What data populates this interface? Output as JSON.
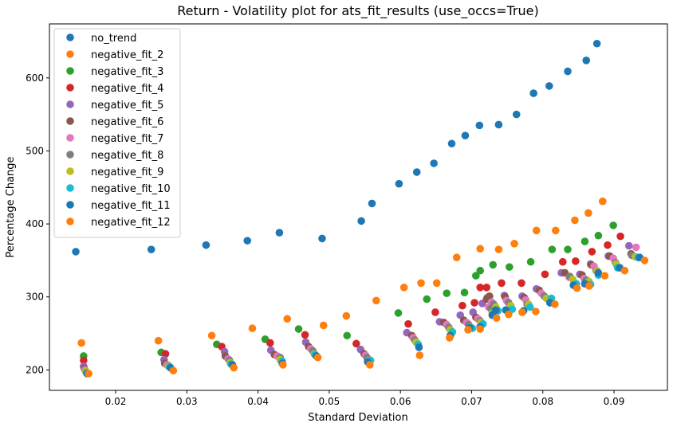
{
  "chart_data": {
    "type": "scatter",
    "title": "Return - Volatility plot for ats_fit_results (use_occs=True)",
    "xlabel": "Standard Deviation",
    "ylabel": "Percentage Change",
    "xlim": [
      0.0107,
      0.0975
    ],
    "ylim": [
      172,
      674
    ],
    "xticks": [
      0.02,
      0.03,
      0.04,
      0.05,
      0.06,
      0.07,
      0.08,
      0.09
    ],
    "xtick_labels": [
      "0.02",
      "0.03",
      "0.04",
      "0.05",
      "0.06",
      "0.07",
      "0.08",
      "0.09"
    ],
    "yticks": [
      200,
      300,
      400,
      500,
      600
    ],
    "ytick_labels": [
      "200",
      "300",
      "400",
      "500",
      "600"
    ],
    "grid": false,
    "legend_position": "top-left",
    "series": [
      {
        "name": "no_trend",
        "color": "#1f77b4",
        "points": [
          [
            0.0144,
            362
          ],
          [
            0.025,
            365
          ],
          [
            0.0327,
            371
          ],
          [
            0.0385,
            377
          ],
          [
            0.043,
            388
          ],
          [
            0.049,
            380
          ],
          [
            0.0545,
            404
          ],
          [
            0.056,
            428
          ],
          [
            0.0598,
            455
          ],
          [
            0.0623,
            471
          ],
          [
            0.0647,
            483
          ],
          [
            0.0672,
            510
          ],
          [
            0.0691,
            521
          ],
          [
            0.0711,
            535
          ],
          [
            0.0738,
            536
          ],
          [
            0.0763,
            550
          ],
          [
            0.0787,
            579
          ],
          [
            0.0809,
            589
          ],
          [
            0.0835,
            609
          ],
          [
            0.0861,
            624
          ],
          [
            0.0876,
            647
          ]
        ]
      },
      {
        "name": "negative_fit_2",
        "color": "#ff7f0e",
        "points": [
          [
            0.0152,
            237
          ],
          [
            0.026,
            240
          ],
          [
            0.0335,
            247
          ],
          [
            0.0392,
            257
          ],
          [
            0.0441,
            270
          ],
          [
            0.0492,
            261
          ],
          [
            0.0524,
            274
          ],
          [
            0.0566,
            295
          ],
          [
            0.0605,
            313
          ],
          [
            0.0629,
            319
          ],
          [
            0.0651,
            319
          ],
          [
            0.0679,
            354
          ],
          [
            0.0712,
            366
          ],
          [
            0.0738,
            365
          ],
          [
            0.076,
            373
          ],
          [
            0.0791,
            391
          ],
          [
            0.0818,
            391
          ],
          [
            0.0845,
            405
          ],
          [
            0.0864,
            415
          ],
          [
            0.0884,
            431
          ]
        ]
      },
      {
        "name": "negative_fit_3",
        "color": "#2ca02c",
        "points": [
          [
            0.0155,
            219
          ],
          [
            0.0264,
            224
          ],
          [
            0.0342,
            235
          ],
          [
            0.041,
            242
          ],
          [
            0.0457,
            256
          ],
          [
            0.0525,
            247
          ],
          [
            0.0597,
            278
          ],
          [
            0.0637,
            297
          ],
          [
            0.0665,
            305
          ],
          [
            0.069,
            306
          ],
          [
            0.0706,
            329
          ],
          [
            0.0712,
            336
          ],
          [
            0.073,
            344
          ],
          [
            0.0753,
            341
          ],
          [
            0.0783,
            348
          ],
          [
            0.0813,
            365
          ],
          [
            0.0835,
            365
          ],
          [
            0.0859,
            376
          ],
          [
            0.0878,
            384
          ],
          [
            0.0899,
            398
          ]
        ]
      },
      {
        "name": "negative_fit_4",
        "color": "#d62728",
        "points": [
          [
            0.0155,
            213
          ],
          [
            0.027,
            222
          ],
          [
            0.0349,
            232
          ],
          [
            0.0417,
            237
          ],
          [
            0.0466,
            248
          ],
          [
            0.0538,
            236
          ],
          [
            0.0611,
            263
          ],
          [
            0.0649,
            279
          ],
          [
            0.0687,
            288
          ],
          [
            0.0704,
            292
          ],
          [
            0.0712,
            313
          ],
          [
            0.0721,
            313
          ],
          [
            0.0742,
            319
          ],
          [
            0.077,
            319
          ],
          [
            0.0803,
            331
          ],
          [
            0.0828,
            348
          ],
          [
            0.0846,
            349
          ],
          [
            0.0869,
            362
          ],
          [
            0.0891,
            371
          ],
          [
            0.0909,
            383
          ]
        ]
      },
      {
        "name": "negative_fit_5",
        "color": "#9467bd",
        "points": [
          [
            0.0155,
            205
          ],
          [
            0.0268,
            214
          ],
          [
            0.0353,
            225
          ],
          [
            0.0418,
            227
          ],
          [
            0.0467,
            238
          ],
          [
            0.0544,
            228
          ],
          [
            0.0609,
            251
          ],
          [
            0.0655,
            266
          ],
          [
            0.0684,
            275
          ],
          [
            0.0702,
            279
          ],
          [
            0.0715,
            291
          ],
          [
            0.0722,
            299
          ],
          [
            0.0746,
            302
          ],
          [
            0.0771,
            301
          ],
          [
            0.0791,
            311
          ],
          [
            0.0826,
            333
          ],
          [
            0.0852,
            331
          ],
          [
            0.0867,
            345
          ],
          [
            0.0892,
            356
          ],
          [
            0.0921,
            370
          ]
        ]
      },
      {
        "name": "negative_fit_6",
        "color": "#8c564b",
        "points": [
          [
            0.0156,
            202
          ],
          [
            0.0269,
            209
          ],
          [
            0.0354,
            219
          ],
          [
            0.0423,
            221
          ],
          [
            0.0471,
            232
          ],
          [
            0.0549,
            222
          ],
          [
            0.0616,
            247
          ],
          [
            0.0661,
            265
          ],
          [
            0.0689,
            268
          ],
          [
            0.0706,
            272
          ],
          [
            0.0721,
            297
          ],
          [
            0.0725,
            301
          ],
          [
            0.0747,
            300
          ],
          [
            0.0774,
            299
          ],
          [
            0.0795,
            309
          ],
          [
            0.0831,
            333
          ],
          [
            0.0855,
            330
          ],
          [
            0.0868,
            344
          ],
          [
            0.0894,
            356
          ],
          [
            0.0924,
            359
          ]
        ]
      },
      {
        "name": "negative_fit_7",
        "color": "#e377c2",
        "points": [
          [
            0.0157,
            200
          ],
          [
            0.0272,
            207
          ],
          [
            0.0358,
            215
          ],
          [
            0.0427,
            219
          ],
          [
            0.0474,
            229
          ],
          [
            0.0551,
            220
          ],
          [
            0.0618,
            244
          ],
          [
            0.0665,
            262
          ],
          [
            0.0693,
            265
          ],
          [
            0.0709,
            270
          ],
          [
            0.0724,
            286
          ],
          [
            0.0728,
            293
          ],
          [
            0.0749,
            295
          ],
          [
            0.0776,
            296
          ],
          [
            0.0798,
            305
          ],
          [
            0.0837,
            327
          ],
          [
            0.0858,
            325
          ],
          [
            0.0872,
            342
          ],
          [
            0.0899,
            353
          ],
          [
            0.0931,
            368
          ]
        ]
      },
      {
        "name": "negative_fit_8",
        "color": "#7f7f7f",
        "points": [
          [
            0.0158,
            198
          ],
          [
            0.0274,
            206
          ],
          [
            0.036,
            213
          ],
          [
            0.0431,
            217
          ],
          [
            0.0477,
            226
          ],
          [
            0.0553,
            217
          ],
          [
            0.062,
            241
          ],
          [
            0.0668,
            258
          ],
          [
            0.0696,
            262
          ],
          [
            0.0712,
            267
          ],
          [
            0.0727,
            284
          ],
          [
            0.0731,
            290
          ],
          [
            0.0752,
            292
          ],
          [
            0.0778,
            290
          ],
          [
            0.0802,
            301
          ],
          [
            0.0838,
            328
          ],
          [
            0.0861,
            323
          ],
          [
            0.0875,
            336
          ],
          [
            0.0902,
            347
          ],
          [
            0.0925,
            357
          ]
        ]
      },
      {
        "name": "negative_fit_9",
        "color": "#bcbd22",
        "points": [
          [
            0.0158,
            198
          ],
          [
            0.0274,
            205
          ],
          [
            0.0361,
            210
          ],
          [
            0.0431,
            214
          ],
          [
            0.0479,
            222
          ],
          [
            0.0556,
            213
          ],
          [
            0.0622,
            238
          ],
          [
            0.067,
            255
          ],
          [
            0.0698,
            259
          ],
          [
            0.0713,
            265
          ],
          [
            0.0729,
            278
          ],
          [
            0.0734,
            286
          ],
          [
            0.0755,
            288
          ],
          [
            0.078,
            290
          ],
          [
            0.0805,
            298
          ],
          [
            0.0842,
            324
          ],
          [
            0.0865,
            321
          ],
          [
            0.0876,
            336
          ],
          [
            0.0903,
            345
          ],
          [
            0.093,
            355
          ]
        ]
      },
      {
        "name": "negative_fit_10",
        "color": "#17becf",
        "points": [
          [
            0.0159,
            196
          ],
          [
            0.0276,
            204
          ],
          [
            0.0362,
            208
          ],
          [
            0.0434,
            212
          ],
          [
            0.048,
            221
          ],
          [
            0.0558,
            213
          ],
          [
            0.0625,
            235
          ],
          [
            0.0673,
            252
          ],
          [
            0.0701,
            257
          ],
          [
            0.0716,
            263
          ],
          [
            0.0732,
            279
          ],
          [
            0.0737,
            281
          ],
          [
            0.0757,
            283
          ],
          [
            0.0782,
            286
          ],
          [
            0.0812,
            298
          ],
          [
            0.0847,
            318
          ],
          [
            0.0867,
            317
          ],
          [
            0.0878,
            330
          ],
          [
            0.0905,
            340
          ],
          [
            0.0934,
            354
          ]
        ]
      },
      {
        "name": "negative_fit_11",
        "color": "#1f77b4",
        "points": [
          [
            0.016,
            195
          ],
          [
            0.0277,
            203
          ],
          [
            0.0364,
            207
          ],
          [
            0.0434,
            209
          ],
          [
            0.0482,
            219
          ],
          [
            0.0554,
            211
          ],
          [
            0.0626,
            231
          ],
          [
            0.067,
            247
          ],
          [
            0.0697,
            258
          ],
          [
            0.0712,
            259
          ],
          [
            0.0729,
            275
          ],
          [
            0.0734,
            282
          ],
          [
            0.0748,
            282
          ],
          [
            0.0773,
            281
          ],
          [
            0.081,
            292
          ],
          [
            0.0843,
            316
          ],
          [
            0.0859,
            318
          ],
          [
            0.0878,
            333
          ],
          [
            0.0908,
            340
          ],
          [
            0.0936,
            354
          ]
        ]
      },
      {
        "name": "negative_fit_12",
        "color": "#ff7f0e",
        "points": [
          [
            0.0162,
            195
          ],
          [
            0.0281,
            199
          ],
          [
            0.0366,
            203
          ],
          [
            0.0435,
            207
          ],
          [
            0.0484,
            217
          ],
          [
            0.0557,
            207
          ],
          [
            0.0627,
            220
          ],
          [
            0.0669,
            244
          ],
          [
            0.0695,
            255
          ],
          [
            0.0712,
            256
          ],
          [
            0.0735,
            271
          ],
          [
            0.0752,
            276
          ],
          [
            0.0771,
            279
          ],
          [
            0.079,
            280
          ],
          [
            0.0817,
            290
          ],
          [
            0.0848,
            312
          ],
          [
            0.0865,
            315
          ],
          [
            0.0887,
            329
          ],
          [
            0.0915,
            336
          ],
          [
            0.0943,
            350
          ]
        ]
      }
    ]
  }
}
